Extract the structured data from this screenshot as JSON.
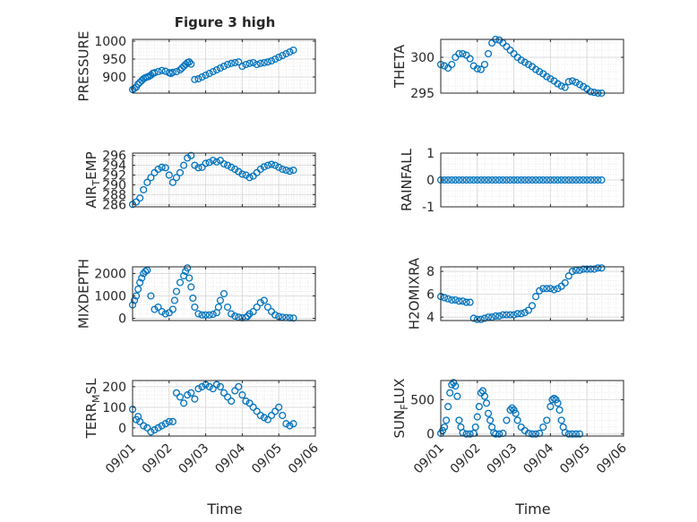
{
  "figure": {
    "title": "Figure 3 high",
    "xlabel": "Time",
    "marker_color": "#0072BD",
    "x_tick_labels": [
      "09/01",
      "09/02",
      "09/03",
      "09/04",
      "09/05",
      "09/06"
    ]
  },
  "chart_data": [
    {
      "type": "scatter",
      "ylabel": "PRESSURE",
      "ylim": [
        855,
        1005
      ],
      "yticks": [
        900,
        950,
        1000
      ],
      "xlim": [
        0,
        5
      ],
      "grid": true,
      "x": [
        0.0,
        0.05,
        0.1,
        0.15,
        0.2,
        0.25,
        0.3,
        0.35,
        0.4,
        0.45,
        0.5,
        0.55,
        0.6,
        0.7,
        0.8,
        0.9,
        1.0,
        1.05,
        1.1,
        1.2,
        1.3,
        1.35,
        1.4,
        1.45,
        1.5,
        1.55,
        1.6,
        1.7,
        1.8,
        1.9,
        2.0,
        2.1,
        2.2,
        2.3,
        2.4,
        2.5,
        2.6,
        2.7,
        2.8,
        2.9,
        3.0,
        3.1,
        3.2,
        3.3,
        3.4,
        3.5,
        3.6,
        3.7,
        3.8,
        3.9,
        4.0,
        4.1,
        4.2,
        4.3,
        4.4
      ],
      "y": [
        865,
        868,
        872,
        880,
        885,
        890,
        895,
        898,
        900,
        902,
        905,
        910,
        912,
        915,
        918,
        916,
        912,
        910,
        913,
        915,
        920,
        925,
        930,
        935,
        940,
        942,
        936,
        893,
        895,
        900,
        905,
        910,
        915,
        920,
        925,
        930,
        935,
        938,
        940,
        942,
        930,
        935,
        938,
        940,
        935,
        938,
        940,
        942,
        945,
        950,
        955,
        960,
        965,
        970,
        975
      ]
    },
    {
      "type": "scatter",
      "ylabel": "THETA",
      "ylim": [
        295,
        302.5
      ],
      "yticks": [
        295,
        300
      ],
      "xlim": [
        0,
        5
      ],
      "grid": true,
      "x": [
        0.0,
        0.1,
        0.2,
        0.3,
        0.4,
        0.5,
        0.6,
        0.7,
        0.8,
        0.9,
        1.0,
        1.1,
        1.2,
        1.3,
        1.4,
        1.5,
        1.6,
        1.7,
        1.8,
        1.9,
        2.0,
        2.1,
        2.2,
        2.3,
        2.4,
        2.5,
        2.6,
        2.7,
        2.8,
        2.9,
        3.0,
        3.1,
        3.2,
        3.3,
        3.4,
        3.5,
        3.6,
        3.7,
        3.8,
        3.9,
        4.0,
        4.1,
        4.2,
        4.3,
        4.4
      ],
      "y": [
        299.0,
        298.8,
        298.5,
        299.0,
        300.0,
        300.5,
        300.5,
        300.3,
        299.8,
        298.8,
        298.4,
        298.3,
        299.0,
        300.5,
        302.0,
        302.5,
        302.4,
        302.0,
        301.5,
        301.0,
        300.5,
        300.0,
        299.6,
        299.3,
        299.0,
        298.7,
        298.3,
        298.0,
        297.7,
        297.3,
        297.0,
        296.7,
        296.3,
        296.0,
        295.8,
        296.6,
        296.7,
        296.5,
        296.2,
        295.9,
        295.6,
        295.2,
        295.1,
        295.0,
        295.0
      ]
    },
    {
      "type": "scatter",
      "ylabel": "AIR_TEMP",
      "ylim": [
        285.5,
        296.5
      ],
      "yticks": [
        286,
        288,
        290,
        292,
        294,
        296
      ],
      "xlim": [
        0,
        5
      ],
      "grid": true,
      "x": [
        0.0,
        0.1,
        0.2,
        0.3,
        0.4,
        0.5,
        0.6,
        0.7,
        0.8,
        0.9,
        1.0,
        1.1,
        1.2,
        1.3,
        1.4,
        1.5,
        1.6,
        1.7,
        1.8,
        1.9,
        2.0,
        2.1,
        2.2,
        2.3,
        2.4,
        2.5,
        2.6,
        2.7,
        2.8,
        2.9,
        3.0,
        3.1,
        3.2,
        3.3,
        3.4,
        3.5,
        3.6,
        3.7,
        3.8,
        3.9,
        4.0,
        4.1,
        4.2,
        4.3,
        4.4
      ],
      "y": [
        286.0,
        286.5,
        287.3,
        289.0,
        290.5,
        291.5,
        292.5,
        293.2,
        293.6,
        293.5,
        292.0,
        290.5,
        291.5,
        292.5,
        294.0,
        295.5,
        296.0,
        294.0,
        293.5,
        293.6,
        294.4,
        294.6,
        295.0,
        294.7,
        295.0,
        294.3,
        294.0,
        293.6,
        293.2,
        292.7,
        292.2,
        292.0,
        291.5,
        291.8,
        292.5,
        293.2,
        293.7,
        294.0,
        294.2,
        294.0,
        293.6,
        293.2,
        293.0,
        292.8,
        293.0
      ]
    },
    {
      "type": "scatter",
      "ylabel": "RAINFALL",
      "ylim": [
        -1,
        1
      ],
      "yticks": [
        -1,
        0,
        1
      ],
      "xlim": [
        0,
        5
      ],
      "grid": true,
      "x": [
        0.0,
        0.1,
        0.2,
        0.3,
        0.4,
        0.5,
        0.6,
        0.7,
        0.8,
        0.9,
        1.0,
        1.1,
        1.2,
        1.3,
        1.4,
        1.5,
        1.6,
        1.7,
        1.8,
        1.9,
        2.0,
        2.1,
        2.2,
        2.3,
        2.4,
        2.5,
        2.6,
        2.7,
        2.8,
        2.9,
        3.0,
        3.1,
        3.2,
        3.3,
        3.4,
        3.5,
        3.6,
        3.7,
        3.8,
        3.9,
        4.0,
        4.1,
        4.2,
        4.3,
        4.4
      ],
      "y": [
        0,
        0,
        0,
        0,
        0,
        0,
        0,
        0,
        0,
        0,
        0,
        0,
        0,
        0,
        0,
        0,
        0,
        0,
        0,
        0,
        0,
        0,
        0,
        0,
        0,
        0,
        0,
        0,
        0,
        0,
        0,
        0,
        0,
        0,
        0,
        0,
        0,
        0,
        0,
        0,
        0,
        0,
        0,
        0,
        0
      ]
    },
    {
      "type": "scatter",
      "ylabel": "MIXDEPTH",
      "ylim": [
        -100,
        2300
      ],
      "yticks": [
        0,
        1000,
        2000
      ],
      "xlim": [
        0,
        5
      ],
      "grid": true,
      "x": [
        0.0,
        0.05,
        0.1,
        0.15,
        0.2,
        0.25,
        0.3,
        0.35,
        0.4,
        0.5,
        0.6,
        0.7,
        0.8,
        0.9,
        1.0,
        1.1,
        1.15,
        1.2,
        1.3,
        1.4,
        1.45,
        1.5,
        1.55,
        1.6,
        1.65,
        1.7,
        1.8,
        1.9,
        2.0,
        2.1,
        2.2,
        2.3,
        2.35,
        2.4,
        2.5,
        2.6,
        2.7,
        2.8,
        2.9,
        3.0,
        3.1,
        3.15,
        3.2,
        3.3,
        3.4,
        3.5,
        3.6,
        3.7,
        3.8,
        3.9,
        4.0,
        4.1,
        4.2,
        4.3,
        4.4
      ],
      "y": [
        600,
        800,
        1000,
        1300,
        1600,
        1800,
        2000,
        2100,
        2150,
        1000,
        400,
        500,
        300,
        200,
        250,
        400,
        800,
        1200,
        1600,
        1900,
        2100,
        2250,
        1800,
        1400,
        900,
        500,
        200,
        150,
        150,
        150,
        180,
        250,
        500,
        800,
        1100,
        500,
        200,
        100,
        50,
        20,
        30,
        100,
        200,
        300,
        500,
        700,
        800,
        500,
        300,
        150,
        80,
        50,
        30,
        20,
        10
      ]
    },
    {
      "type": "scatter",
      "ylabel": "H2OMIXRA",
      "ylim": [
        3.7,
        8.4
      ],
      "yticks": [
        4,
        6,
        8
      ],
      "xlim": [
        0,
        5
      ],
      "grid": true,
      "x": [
        0.0,
        0.1,
        0.2,
        0.3,
        0.4,
        0.5,
        0.6,
        0.7,
        0.8,
        0.9,
        1.0,
        1.1,
        1.2,
        1.3,
        1.4,
        1.5,
        1.6,
        1.7,
        1.8,
        1.9,
        2.0,
        2.1,
        2.2,
        2.3,
        2.4,
        2.5,
        2.6,
        2.7,
        2.8,
        2.9,
        3.0,
        3.1,
        3.2,
        3.3,
        3.4,
        3.5,
        3.6,
        3.7,
        3.8,
        3.9,
        4.0,
        4.1,
        4.2,
        4.3,
        4.4
      ],
      "y": [
        5.8,
        5.7,
        5.6,
        5.5,
        5.5,
        5.4,
        5.4,
        5.3,
        5.3,
        3.9,
        3.8,
        3.8,
        3.9,
        4.0,
        4.0,
        4.1,
        4.1,
        4.2,
        4.2,
        4.2,
        4.2,
        4.3,
        4.3,
        4.4,
        4.6,
        5.0,
        5.8,
        6.3,
        6.5,
        6.5,
        6.5,
        6.4,
        6.5,
        6.7,
        7.0,
        7.6,
        8.0,
        8.1,
        8.1,
        8.2,
        8.2,
        8.2,
        8.2,
        8.3,
        8.3
      ]
    },
    {
      "type": "scatter",
      "ylabel": "TERR_MSL",
      "ylim": [
        -40,
        230
      ],
      "yticks": [
        0,
        100,
        200
      ],
      "xlim": [
        0,
        5
      ],
      "grid": true,
      "x": [
        0.0,
        0.1,
        0.15,
        0.2,
        0.3,
        0.4,
        0.5,
        0.6,
        0.7,
        0.8,
        0.9,
        1.0,
        1.1,
        1.2,
        1.3,
        1.4,
        1.5,
        1.6,
        1.7,
        1.8,
        1.9,
        2.0,
        2.1,
        2.2,
        2.3,
        2.4,
        2.5,
        2.6,
        2.7,
        2.8,
        2.9,
        3.0,
        3.1,
        3.2,
        3.3,
        3.4,
        3.5,
        3.6,
        3.7,
        3.8,
        3.9,
        4.0,
        4.1,
        4.2,
        4.3,
        4.4
      ],
      "y": [
        90,
        40,
        55,
        30,
        10,
        0,
        -20,
        -10,
        0,
        10,
        20,
        30,
        30,
        170,
        150,
        120,
        160,
        170,
        140,
        190,
        200,
        210,
        200,
        190,
        210,
        200,
        170,
        150,
        130,
        180,
        200,
        160,
        130,
        120,
        100,
        80,
        60,
        50,
        40,
        60,
        80,
        100,
        60,
        20,
        10,
        20
      ]
    },
    {
      "type": "scatter",
      "ylabel": "SUN_FLUX",
      "ylim": [
        -30,
        780
      ],
      "yticks": [
        0,
        500
      ],
      "xlim": [
        0,
        5
      ],
      "grid": true,
      "x": [
        0.0,
        0.05,
        0.1,
        0.15,
        0.2,
        0.25,
        0.3,
        0.35,
        0.4,
        0.45,
        0.5,
        0.55,
        0.6,
        0.7,
        0.8,
        0.9,
        0.95,
        1.0,
        1.05,
        1.1,
        1.15,
        1.2,
        1.25,
        1.3,
        1.35,
        1.4,
        1.45,
        1.5,
        1.6,
        1.7,
        1.8,
        1.9,
        1.95,
        2.0,
        2.05,
        2.1,
        2.2,
        2.3,
        2.4,
        2.5,
        2.6,
        2.7,
        2.8,
        2.9,
        3.0,
        3.05,
        3.1,
        3.15,
        3.2,
        3.25,
        3.3,
        3.35,
        3.4,
        3.5,
        3.6,
        3.7,
        3.8
      ],
      "y": [
        10,
        50,
        100,
        200,
        400,
        600,
        720,
        750,
        700,
        550,
        200,
        100,
        20,
        0,
        0,
        10,
        100,
        250,
        400,
        600,
        630,
        550,
        450,
        300,
        200,
        100,
        20,
        0,
        0,
        10,
        200,
        350,
        380,
        350,
        300,
        200,
        100,
        50,
        10,
        0,
        0,
        10,
        100,
        200,
        400,
        500,
        520,
        500,
        450,
        350,
        200,
        100,
        20,
        0,
        0,
        0,
        0
      ]
    }
  ]
}
